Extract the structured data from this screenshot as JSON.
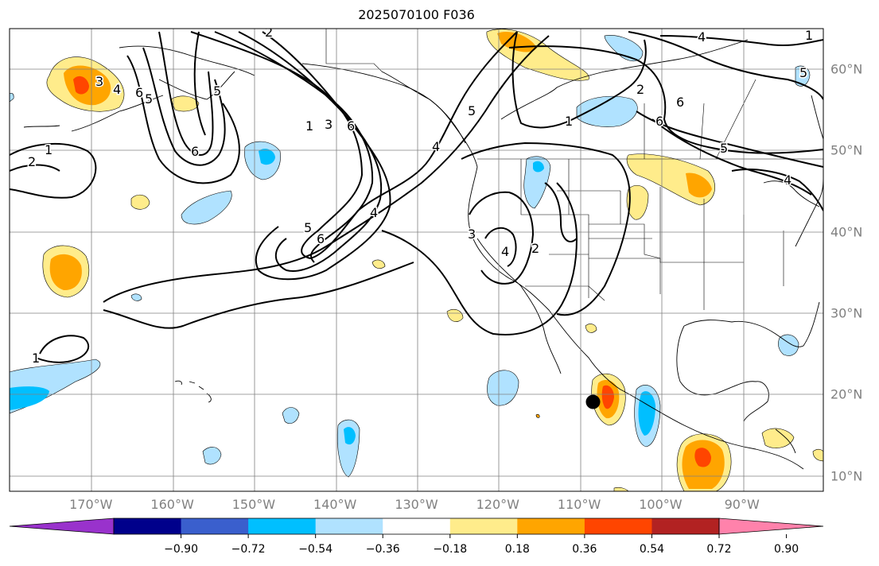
{
  "title": "2025070100 F036",
  "map": {
    "lon_labels": [
      {
        "text": "170°W",
        "lon": -170
      },
      {
        "text": "160°W",
        "lon": -160
      },
      {
        "text": "150°W",
        "lon": -150
      },
      {
        "text": "140°W",
        "lon": -140
      },
      {
        "text": "130°W",
        "lon": -130
      },
      {
        "text": "120°W",
        "lon": -120
      },
      {
        "text": "110°W",
        "lon": -110
      },
      {
        "text": "100°W",
        "lon": -100
      },
      {
        "text": "90°W",
        "lon": -90
      }
    ],
    "lat_labels": [
      {
        "text": "60°N",
        "lat": 60
      },
      {
        "text": "50°N",
        "lat": 50
      },
      {
        "text": "40°N",
        "lat": 40
      },
      {
        "text": "30°N",
        "lat": 30
      },
      {
        "text": "20°N",
        "lat": 20
      },
      {
        "text": "10°N",
        "lat": 10
      }
    ],
    "contour_labels": [
      "1",
      "2",
      "3",
      "4",
      "5",
      "6",
      "1",
      "2",
      "6",
      "1",
      "3",
      "6",
      "5",
      "5",
      "6",
      "4",
      "5",
      "4",
      "3",
      "2",
      "1",
      "4",
      "6",
      "5",
      "4",
      "1",
      "6",
      "2",
      "5",
      "4"
    ],
    "marker": {
      "name": "storm-position-marker",
      "lon": -108.3,
      "lat": 19.1
    }
  },
  "colorbar": {
    "colors": [
      "#9932cc",
      "#00008b",
      "#3a5fcd",
      "#00bfff",
      "#b0e2ff",
      "#ffffff",
      "#ffec8b",
      "#ffa500",
      "#ff4500",
      "#b22222",
      "#ff82ab"
    ],
    "labels": [
      "−0.90",
      "−0.72",
      "−0.54",
      "−0.36",
      "−0.18",
      "0.18",
      "0.36",
      "0.54",
      "0.72",
      "0.90"
    ]
  },
  "legend_colors": {
    "coast": "#000000",
    "grid": "#808080",
    "tick_text": "#808080"
  }
}
